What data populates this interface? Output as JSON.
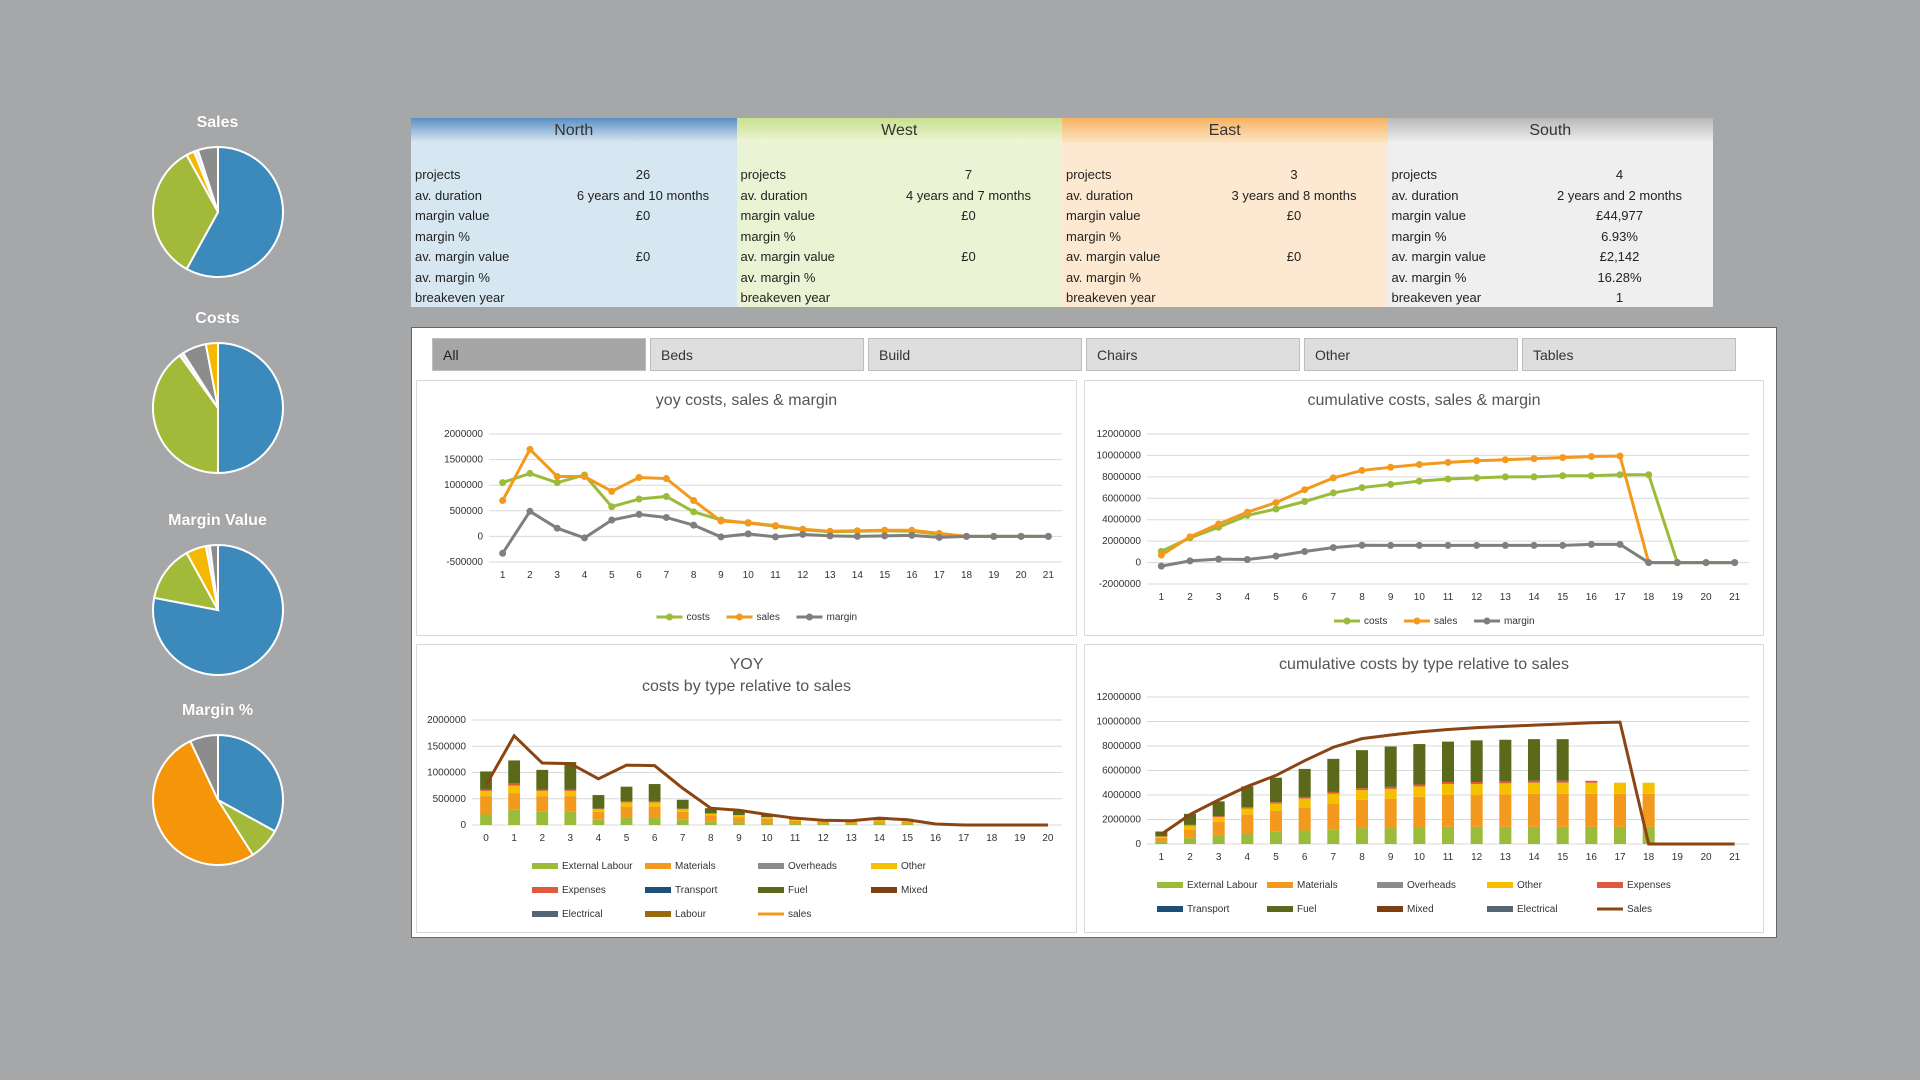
{
  "pies": [
    {
      "title": "Sales",
      "slices": [
        {
          "value": 58,
          "color": "#3b8abb"
        },
        {
          "value": 34,
          "color": "#a3b93a"
        },
        {
          "value": 2,
          "color": "#f5b800"
        },
        {
          "value": 1,
          "color": "#eeeeee"
        },
        {
          "value": 5,
          "color": "#8c8c8c"
        }
      ]
    },
    {
      "title": "Costs",
      "slices": [
        {
          "value": 50,
          "color": "#3b8abb"
        },
        {
          "value": 40,
          "color": "#a3b93a"
        },
        {
          "value": 1,
          "color": "#eeeeee"
        },
        {
          "value": 6,
          "color": "#8c8c8c"
        },
        {
          "value": 3,
          "color": "#f5b800"
        }
      ]
    },
    {
      "title": "Margin Value",
      "slices": [
        {
          "value": 78,
          "color": "#3b8abb"
        },
        {
          "value": 14,
          "color": "#a3b93a"
        },
        {
          "value": 5,
          "color": "#f5b800"
        },
        {
          "value": 1,
          "color": "#eeeeee"
        },
        {
          "value": 2,
          "color": "#8c8c8c"
        }
      ]
    },
    {
      "title": "Margin %",
      "slices": [
        {
          "value": 33,
          "color": "#3b8abb"
        },
        {
          "value": 8,
          "color": "#a3b93a"
        },
        {
          "value": 52,
          "color": "#f5960a"
        },
        {
          "value": 7,
          "color": "#8c8c8c"
        }
      ]
    }
  ],
  "regions": [
    {
      "key": "north",
      "name": "North",
      "rows": [
        {
          "label": "projects",
          "value": "26"
        },
        {
          "label": "av. duration",
          "value": "6 years and 10 months"
        },
        {
          "label": "margin value",
          "value": "£0"
        },
        {
          "label": "margin %",
          "value": ""
        },
        {
          "label": "av. margin value",
          "value": "£0"
        },
        {
          "label": "av. margin %",
          "value": ""
        },
        {
          "label": "breakeven year",
          "value": ""
        }
      ]
    },
    {
      "key": "west",
      "name": "West",
      "rows": [
        {
          "label": "projects",
          "value": "7"
        },
        {
          "label": "av. duration",
          "value": "4 years and 7 months"
        },
        {
          "label": "margin value",
          "value": "£0"
        },
        {
          "label": "margin %",
          "value": ""
        },
        {
          "label": "av. margin value",
          "value": "£0"
        },
        {
          "label": "av. margin %",
          "value": ""
        },
        {
          "label": "breakeven year",
          "value": ""
        }
      ]
    },
    {
      "key": "east",
      "name": "East",
      "rows": [
        {
          "label": "projects",
          "value": "3"
        },
        {
          "label": "av. duration",
          "value": "3 years and 8 months"
        },
        {
          "label": "margin value",
          "value": "£0"
        },
        {
          "label": "margin %",
          "value": ""
        },
        {
          "label": "av. margin value",
          "value": "£0"
        },
        {
          "label": "av. margin %",
          "value": ""
        },
        {
          "label": "breakeven year",
          "value": ""
        }
      ]
    },
    {
      "key": "south",
      "name": "South",
      "rows": [
        {
          "label": "projects",
          "value": "4"
        },
        {
          "label": "av. duration",
          "value": "2 years and 2 months"
        },
        {
          "label": "margin value",
          "value": "£44,977"
        },
        {
          "label": "margin %",
          "value": "6.93%"
        },
        {
          "label": "av. margin value",
          "value": "£2,142"
        },
        {
          "label": "av. margin %",
          "value": "16.28%"
        },
        {
          "label": "breakeven year",
          "value": "1"
        }
      ]
    }
  ],
  "tabs": [
    {
      "label": "All",
      "active": true
    },
    {
      "label": "Beds",
      "active": false
    },
    {
      "label": "Build",
      "active": false
    },
    {
      "label": "Chairs",
      "active": false
    },
    {
      "label": "Other",
      "active": false
    },
    {
      "label": "Tables",
      "active": false
    }
  ],
  "colors": {
    "costs": "#9bbb3b",
    "sales": "#f39a1e",
    "margin": "#7f7f7f",
    "ext_labour": "#9bbb3b",
    "materials": "#f39a1e",
    "overheads": "#8c8c8c",
    "other": "#f5c000",
    "expenses": "#e2583e",
    "transport": "#1f4e79",
    "fuel": "#5a6a1a",
    "mixed": "#7f3f10",
    "electrical": "#566573",
    "labour": "#9c6a0c",
    "sales_line": "#8b4513"
  },
  "chart_data": [
    {
      "type": "line",
      "title": "yoy costs, sales & margin",
      "x": [
        1,
        2,
        3,
        4,
        5,
        6,
        7,
        8,
        9,
        10,
        11,
        12,
        13,
        14,
        15,
        16,
        17,
        18,
        19,
        20,
        21
      ],
      "ylim": [
        -500000,
        2000000
      ],
      "yticks": [
        "2000000",
        "1500000",
        "1000000",
        "500000",
        "0",
        "-500000"
      ],
      "series": [
        {
          "name": "costs",
          "values": [
            1050000,
            1230000,
            1050000,
            1200000,
            580000,
            730000,
            780000,
            480000,
            320000,
            260000,
            200000,
            130000,
            90000,
            100000,
            110000,
            100000,
            40000,
            0,
            0,
            0,
            0
          ]
        },
        {
          "name": "sales",
          "values": [
            700000,
            1700000,
            1170000,
            1170000,
            880000,
            1150000,
            1130000,
            700000,
            300000,
            270000,
            210000,
            140000,
            100000,
            110000,
            120000,
            120000,
            60000,
            0,
            0,
            0,
            0
          ]
        },
        {
          "name": "margin",
          "values": [
            -330000,
            490000,
            160000,
            -30000,
            320000,
            430000,
            370000,
            220000,
            -10000,
            50000,
            -10000,
            40000,
            10000,
            0,
            10000,
            20000,
            -20000,
            0,
            0,
            0,
            0
          ]
        }
      ]
    },
    {
      "type": "line",
      "title": "cumulative costs, sales & margin",
      "x": [
        1,
        2,
        3,
        4,
        5,
        6,
        7,
        8,
        9,
        10,
        11,
        12,
        13,
        14,
        15,
        16,
        17,
        18,
        19,
        20,
        21
      ],
      "ylim": [
        -2000000,
        12000000
      ],
      "yticks": [
        "12000000",
        "10000000",
        "8000000",
        "6000000",
        "4000000",
        "2000000",
        "0",
        "-2000000"
      ],
      "series": [
        {
          "name": "costs",
          "values": [
            1050000,
            2300000,
            3300000,
            4400000,
            5000000,
            5700000,
            6500000,
            7000000,
            7300000,
            7600000,
            7800000,
            7900000,
            8000000,
            8000000,
            8100000,
            8100000,
            8200000,
            8200000,
            0,
            0,
            0
          ]
        },
        {
          "name": "sales",
          "values": [
            700000,
            2400000,
            3600000,
            4700000,
            5600000,
            6800000,
            7900000,
            8600000,
            8900000,
            9150000,
            9350000,
            9500000,
            9600000,
            9700000,
            9800000,
            9900000,
            9950000,
            0,
            0,
            0,
            0
          ]
        },
        {
          "name": "margin",
          "values": [
            -330000,
            160000,
            320000,
            290000,
            600000,
            1030000,
            1400000,
            1620000,
            1600000,
            1600000,
            1600000,
            1600000,
            1600000,
            1600000,
            1600000,
            1700000,
            1700000,
            0,
            0,
            0,
            0
          ]
        }
      ]
    },
    {
      "type": "bar",
      "title": "YOY",
      "subtitle": "costs by type relative to sales",
      "x": [
        0,
        1,
        2,
        3,
        4,
        5,
        6,
        7,
        8,
        9,
        10,
        11,
        12,
        13,
        14,
        15,
        16,
        17,
        18,
        19,
        20
      ],
      "ylim": [
        0,
        2000000
      ],
      "yticks": [
        "2000000",
        "1500000",
        "1000000",
        "500000",
        "0"
      ],
      "legend": [
        "External Labour",
        "Materials",
        "Overheads",
        "Other",
        "Expenses",
        "Transport",
        "Fuel",
        "Mixed",
        "Electrical",
        "Labour",
        "sales"
      ],
      "series": [
        {
          "name": "External Labour",
          "values": [
            200000,
            300000,
            250000,
            250000,
            100000,
            150000,
            150000,
            100000,
            60000,
            50000,
            40000,
            30000,
            20000,
            20000,
            20000,
            20000,
            0,
            0,
            0,
            0,
            0
          ]
        },
        {
          "name": "Materials",
          "values": [
            350000,
            300000,
            300000,
            300000,
            150000,
            200000,
            200000,
            150000,
            120000,
            100000,
            80000,
            50000,
            40000,
            40000,
            50000,
            40000,
            0,
            0,
            0,
            0,
            0
          ]
        },
        {
          "name": "Other",
          "values": [
            100000,
            150000,
            100000,
            100000,
            50000,
            80000,
            80000,
            50000,
            40000,
            40000,
            30000,
            20000,
            10000,
            20000,
            20000,
            20000,
            0,
            0,
            0,
            0,
            0
          ]
        },
        {
          "name": "Expenses",
          "values": [
            20000,
            50000,
            20000,
            20000,
            10000,
            20000,
            20000,
            10000,
            0,
            0,
            0,
            0,
            0,
            0,
            0,
            0,
            0,
            0,
            0,
            0,
            0
          ]
        },
        {
          "name": "Fuel",
          "values": [
            350000,
            430000,
            380000,
            530000,
            260000,
            280000,
            330000,
            170000,
            100000,
            70000,
            50000,
            30000,
            20000,
            20000,
            20000,
            20000,
            0,
            0,
            0,
            0,
            0
          ]
        }
      ],
      "sales": [
        760000,
        1700000,
        1180000,
        1170000,
        880000,
        1140000,
        1130000,
        700000,
        320000,
        280000,
        200000,
        130000,
        90000,
        80000,
        130000,
        100000,
        20000,
        0,
        0,
        0,
        0
      ]
    },
    {
      "type": "bar",
      "title": "cumulative costs by type relative to sales",
      "x": [
        1,
        2,
        3,
        4,
        5,
        6,
        7,
        8,
        9,
        10,
        11,
        12,
        13,
        14,
        15,
        16,
        17,
        18,
        19,
        20,
        21
      ],
      "ylim": [
        0,
        12000000
      ],
      "yticks": [
        "12000000",
        "10000000",
        "8000000",
        "6000000",
        "4000000",
        "2000000",
        "0"
      ],
      "legend": [
        "External Labour",
        "Materials",
        "Overheads",
        "Other",
        "Expenses",
        "Transport",
        "Fuel",
        "Mixed",
        "Electrical",
        "Sales"
      ],
      "series": [
        {
          "name": "External Labour",
          "values": [
            200000,
            500000,
            700000,
            900000,
            1000000,
            1100000,
            1200000,
            1300000,
            1300000,
            1350000,
            1400000,
            1400000,
            1400000,
            1400000,
            1400000,
            1400000,
            1400000,
            1400000,
            0,
            0,
            0
          ]
        },
        {
          "name": "Materials",
          "values": [
            300000,
            700000,
            1100000,
            1500000,
            1700000,
            1900000,
            2100000,
            2300000,
            2400000,
            2500000,
            2600000,
            2600000,
            2650000,
            2700000,
            2700000,
            2700000,
            2700000,
            2700000,
            0,
            0,
            0
          ]
        },
        {
          "name": "Other",
          "values": [
            100000,
            300000,
            400000,
            500000,
            600000,
            700000,
            800000,
            800000,
            800000,
            850000,
            900000,
            900000,
            900000,
            900000,
            900000,
            900000,
            900000,
            900000,
            0,
            0,
            0
          ]
        },
        {
          "name": "Expenses",
          "values": [
            20000,
            60000,
            80000,
            100000,
            110000,
            130000,
            150000,
            160000,
            160000,
            160000,
            160000,
            160000,
            160000,
            160000,
            160000,
            160000,
            0,
            0,
            0,
            0,
            0
          ]
        },
        {
          "name": "Fuel",
          "values": [
            400000,
            900000,
            1200000,
            1700000,
            2000000,
            2300000,
            2700000,
            3100000,
            3300000,
            3300000,
            3300000,
            3400000,
            3400000,
            3400000,
            3400000,
            0,
            0,
            0,
            0,
            0,
            0
          ]
        }
      ],
      "sales": [
        800000,
        2400000,
        3600000,
        4700000,
        5600000,
        6800000,
        7900000,
        8600000,
        8900000,
        9150000,
        9350000,
        9500000,
        9600000,
        9700000,
        9800000,
        9900000,
        9950000,
        0,
        0,
        0,
        0
      ]
    }
  ]
}
